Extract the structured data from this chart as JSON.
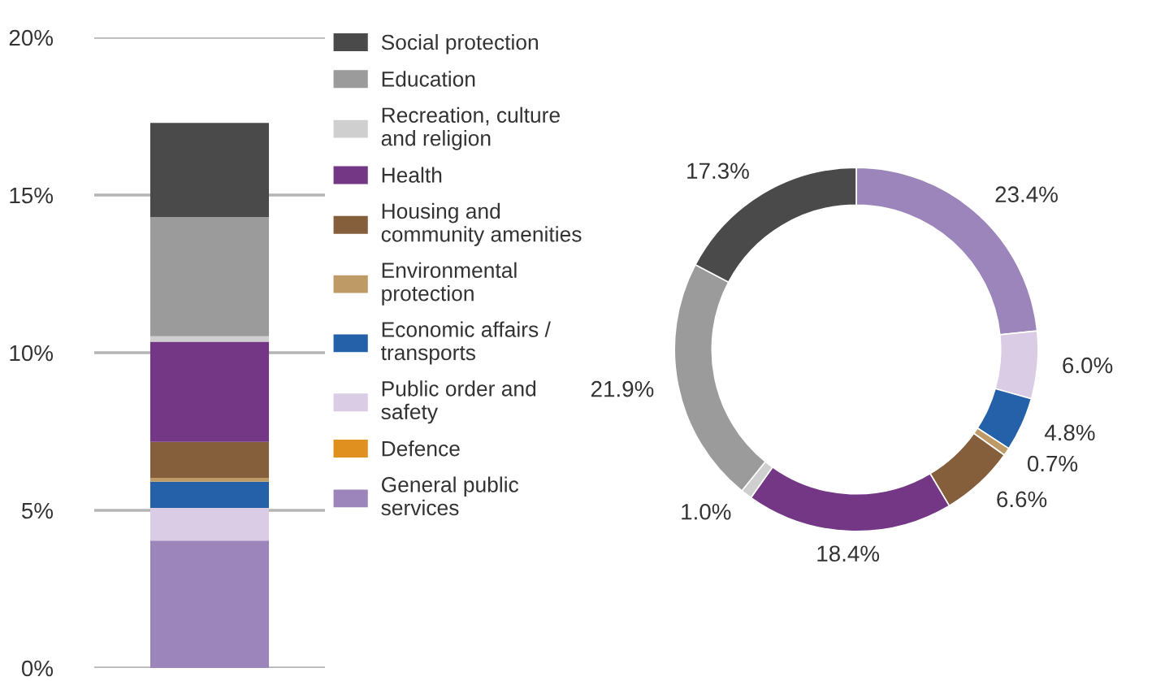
{
  "chart_data": [
    {
      "type": "bar",
      "stacked": true,
      "categories": [
        null
      ],
      "ylim": [
        0,
        20
      ],
      "yticks": [
        {
          "value": 0,
          "label": "0%"
        },
        {
          "value": 5,
          "label": "5%"
        },
        {
          "value": 10,
          "label": "10%"
        },
        {
          "value": 15,
          "label": "15%"
        },
        {
          "value": 20,
          "label": "20%"
        }
      ],
      "grid": "y",
      "legend": "right",
      "series": [
        {
          "name": "General public services",
          "color": "#9c85ba",
          "values": [
            4.04
          ]
        },
        {
          "name": "Defence",
          "color": "#e0901e",
          "values": [
            0
          ]
        },
        {
          "name": "Public order and safety",
          "color": "#d9cce4",
          "values": [
            1.04
          ]
        },
        {
          "name": "Economic affairs / transports",
          "color": "#2461a8",
          "values": [
            0.83
          ]
        },
        {
          "name": "Environmental protection",
          "color": "#bd9a66",
          "values": [
            0.12
          ]
        },
        {
          "name": "Housing and community amenities",
          "color": "#855e3b",
          "values": [
            1.14
          ]
        },
        {
          "name": "Health",
          "color": "#733786",
          "values": [
            3.18
          ]
        },
        {
          "name": "Recreation, culture and religion",
          "color": "#cfcfcf",
          "values": [
            0.17
          ]
        },
        {
          "name": "Education",
          "color": "#9b9b9b",
          "values": [
            3.78
          ]
        },
        {
          "name": "Social protection",
          "color": "#4a4a4a",
          "values": [
            2.99
          ]
        }
      ]
    },
    {
      "type": "donut",
      "categories": [
        null,
        null,
        null,
        null,
        null,
        null,
        null,
        null,
        null
      ],
      "value_labels": [
        "23.4%",
        "6.0%",
        "4.8%",
        "0.7%",
        "6.6%",
        "18.4%",
        "1.0%",
        "21.9%",
        "17.3%"
      ],
      "values": [
        23.4,
        6.0,
        4.8,
        0.7,
        6.6,
        18.4,
        1.0,
        21.9,
        17.3
      ],
      "colors": [
        "#9c85ba",
        "#d9cce4",
        "#2461a8",
        "#bd9a66",
        "#855e3b",
        "#733786",
        "#cfcfcf",
        "#9b9b9b",
        "#4a4a4a"
      ]
    }
  ]
}
